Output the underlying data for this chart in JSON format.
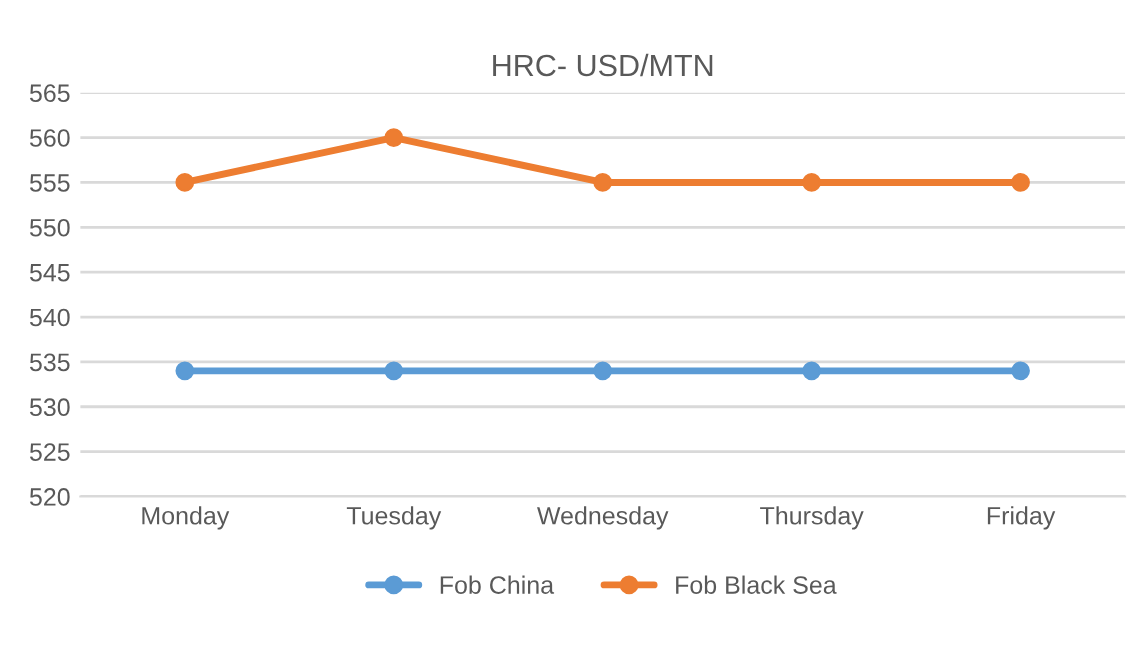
{
  "chart_data": {
    "type": "line",
    "title": "HRC- USD/MTN",
    "categories": [
      "Monday",
      "Tuesday",
      "Wednesday",
      "Thursday",
      "Friday"
    ],
    "series": [
      {
        "name": "Fob China",
        "color": "#5b9bd5",
        "values": [
          534,
          534,
          534,
          534,
          534
        ]
      },
      {
        "name": "Fob Black Sea",
        "color": "#ed7d31",
        "values": [
          555,
          560,
          555,
          555,
          555
        ]
      }
    ],
    "ylim": [
      520,
      565
    ],
    "yticks": [
      520,
      525,
      530,
      535,
      540,
      545,
      550,
      555,
      560,
      565
    ],
    "grid": "y",
    "legend": "bottom",
    "marker": "circle",
    "line_style": "solid"
  }
}
